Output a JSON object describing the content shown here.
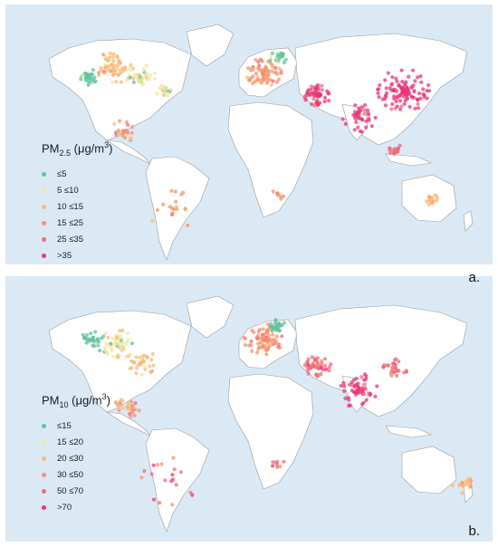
{
  "panels": [
    {
      "id": "a",
      "title_main": "PM",
      "title_sub": "2.5",
      "title_unit_pre": " (μg/m",
      "title_unit_sup": "3",
      "title_unit_post": ")",
      "label": "a.",
      "legend": [
        {
          "label": "≤5",
          "color": "#5fc3a2"
        },
        {
          "label": "5 ≤10",
          "color": "#f2e8a4"
        },
        {
          "label": "10 ≤15",
          "color": "#f9b977"
        },
        {
          "label": "15 ≤25",
          "color": "#f7916c"
        },
        {
          "label": "25 ≤35",
          "color": "#f06a7a"
        },
        {
          "label": ">35",
          "color": "#ea3678"
        }
      ]
    },
    {
      "id": "b",
      "title_main": "PM",
      "title_sub": "10",
      "title_unit_pre": " (μg/m",
      "title_unit_sup": "3",
      "title_unit_post": ")",
      "label": "b.",
      "legend": [
        {
          "label": "≤15",
          "color": "#5fc3a2"
        },
        {
          "label": "15 ≤20",
          "color": "#f2e8a4"
        },
        {
          "label": "20 ≤30",
          "color": "#f9b977"
        },
        {
          "label": "30 ≤50",
          "color": "#f7916c"
        },
        {
          "label": "50 ≤70",
          "color": "#f06a7a"
        },
        {
          "label": ">70",
          "color": "#ea3678"
        }
      ]
    }
  ],
  "colors": {
    "ocean": "#dbe9f4",
    "land": "#ffffff",
    "border": "#9a9a9a"
  }
}
